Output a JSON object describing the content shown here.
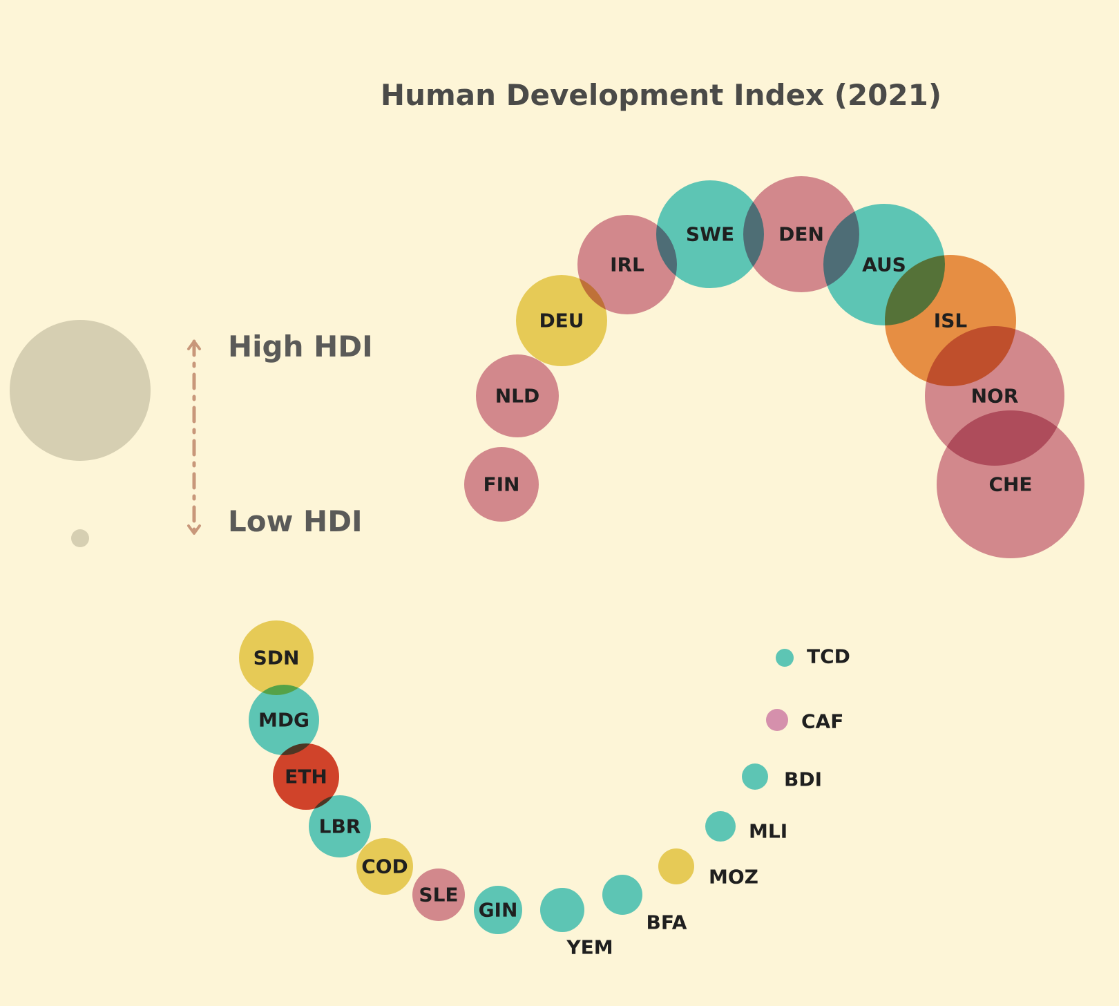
{
  "chart_data": {
    "type": "bubble",
    "title": "Human Development Index (2021)",
    "legend": {
      "high_label": "High HDI",
      "low_label": "Low HDI",
      "high_color": "#d6cfb2",
      "arrow_color": "#c8977a"
    },
    "colors": {
      "pink": "#d48ea6",
      "cyan": "#5ecdd6",
      "yellow": "#e8d366",
      "orange": "#e8944f",
      "red": "#d24632",
      "violet": "#d796cc"
    },
    "high_group": [
      {
        "code": "FIN",
        "color": "pink"
      },
      {
        "code": "NLD",
        "color": "pink"
      },
      {
        "code": "DEU",
        "color": "yellow"
      },
      {
        "code": "IRL",
        "color": "pink"
      },
      {
        "code": "SWE",
        "color": "cyan"
      },
      {
        "code": "DEN",
        "color": "pink"
      },
      {
        "code": "AUS",
        "color": "cyan"
      },
      {
        "code": "ISL",
        "color": "orange"
      },
      {
        "code": "NOR",
        "color": "pink"
      },
      {
        "code": "CHE",
        "color": "pink"
      }
    ],
    "low_group": [
      {
        "code": "SDN",
        "color": "yellow"
      },
      {
        "code": "MDG",
        "color": "cyan"
      },
      {
        "code": "ETH",
        "color": "red"
      },
      {
        "code": "LBR",
        "color": "cyan"
      },
      {
        "code": "COD",
        "color": "yellow"
      },
      {
        "code": "SLE",
        "color": "pink"
      },
      {
        "code": "GIN",
        "color": "cyan"
      },
      {
        "code": "YEM",
        "color": "cyan"
      },
      {
        "code": "BFA",
        "color": "cyan"
      },
      {
        "code": "MOZ",
        "color": "yellow"
      },
      {
        "code": "MLI",
        "color": "cyan"
      },
      {
        "code": "BDI",
        "color": "cyan"
      },
      {
        "code": "CAF",
        "color": "violet"
      },
      {
        "code": "TCD",
        "color": "cyan"
      }
    ]
  }
}
